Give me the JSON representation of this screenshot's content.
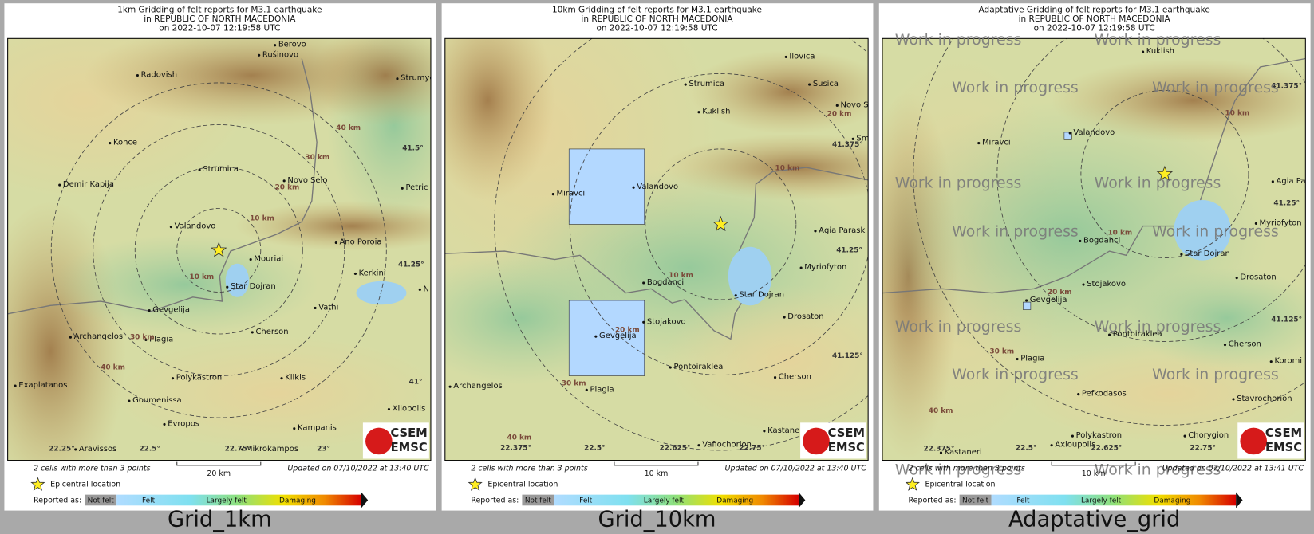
{
  "panels": [
    {
      "title_lines": [
        "1km Gridding of felt reports for M3.1 earthquake",
        "in REPUBLIC OF NORTH MACEDONIA",
        "on  2022-10-07 12:19:58 UTC"
      ],
      "places": [
        "Berovo",
        "Rušinovo",
        "Radovish",
        "Strumyca",
        "Konce",
        "Strumica",
        "Novo Selo",
        "Petric",
        "Demir Kapija",
        "Valandovo",
        "Ano Poroia",
        "Mouriai",
        "Kerkini",
        "Star Dojran",
        "Gevgelija",
        "Vathi",
        "Archangelos",
        "Plagia",
        "Cherson",
        "Polykastron",
        "Kilkis",
        "Exaplatanos",
        "Goumenissa",
        "Xilopolis",
        "Evropos",
        "Kampanis",
        "Aravissos",
        "Mikrokampos",
        "N"
      ],
      "grid_labels": [
        "41.5°",
        "41.25°",
        "41°",
        "22.25°",
        "22.5°",
        "22.75°",
        "23°",
        "10 km",
        "20 km",
        "30 km",
        "40 km",
        "10 km",
        "30 km",
        "40 km"
      ],
      "cells_note": "2 cells with more than 3 points",
      "scale": "20 km",
      "updated": "Updated on 07/10/2022 at 13:40 UTC",
      "caption": "Grid_1km"
    },
    {
      "title_lines": [
        "10km Gridding of felt reports for M3.1 earthquake",
        "in REPUBLIC OF NORTH MACEDONIA",
        "on  2022-10-07 12:19:58 UTC"
      ],
      "places": [
        "Ilovica",
        "Strumica",
        "Susica",
        "Kuklish",
        "Novo S",
        "Sm",
        "Miravci",
        "Valandovo",
        "Agia Parask",
        "Myriofyton",
        "Bogdanci",
        "Star Dojran",
        "Drosaton",
        "Stojakovo",
        "Gevgelija",
        "Pontoiraklea",
        "Cherson",
        "Archangelos",
        "Plagia",
        "Kastane",
        "Vafiochorion"
      ],
      "grid_labels": [
        "41.375°",
        "41.25°",
        "41.125°",
        "22.375°",
        "22.5°",
        "22.625°",
        "22.75°",
        "20 km",
        "10 km",
        "10 km",
        "20 km",
        "30 km",
        "40 km"
      ],
      "cells_note": "2 cells with more than 3 points",
      "scale": "10 km",
      "updated": "Updated on 07/10/2022 at 13:40 UTC",
      "caption": "Grid_10km"
    },
    {
      "title_lines": [
        "Adaptative Gridding of felt reports for M3.1 earthquake",
        "in REPUBLIC OF NORTH MACEDONIA",
        "on  2022-10-07 12:19:58 UTC"
      ],
      "places": [
        "Kuklish",
        "Valandovo",
        "Miravci",
        "Agia Pa",
        "Myriofyton",
        "Bogdanci",
        "Star Dojran",
        "Drosaton",
        "Stojakovo",
        "Gevgelija",
        "Pontoiraklea",
        "Cherson",
        "Plagia",
        "Koromi",
        "Stavrochorion",
        "Pefkodasos",
        "Polykastron",
        "Chorygion",
        "Kastaneri",
        "Axioupolis"
      ],
      "grid_labels": [
        "41.375°",
        "41.25°",
        "41.125°",
        "22.375°",
        "22.5°",
        "22.625°",
        "22.75°",
        "10 km",
        "10 km",
        "20 km",
        "30 km",
        "40 km"
      ],
      "cells_note": "2 cells with more than 3 points",
      "scale": "10 km",
      "updated": "Updated on 07/10/2022 at 13:41 UTC",
      "caption": "Adaptative_grid",
      "watermark": "Work in progress"
    }
  ],
  "legend": {
    "epicentral": "Epicentral location",
    "reported_as": "Reported as:",
    "levels": [
      "Not felt",
      "Felt",
      "Largely felt",
      "Damaging"
    ]
  },
  "logo": [
    "CSEM",
    "EMSC"
  ]
}
